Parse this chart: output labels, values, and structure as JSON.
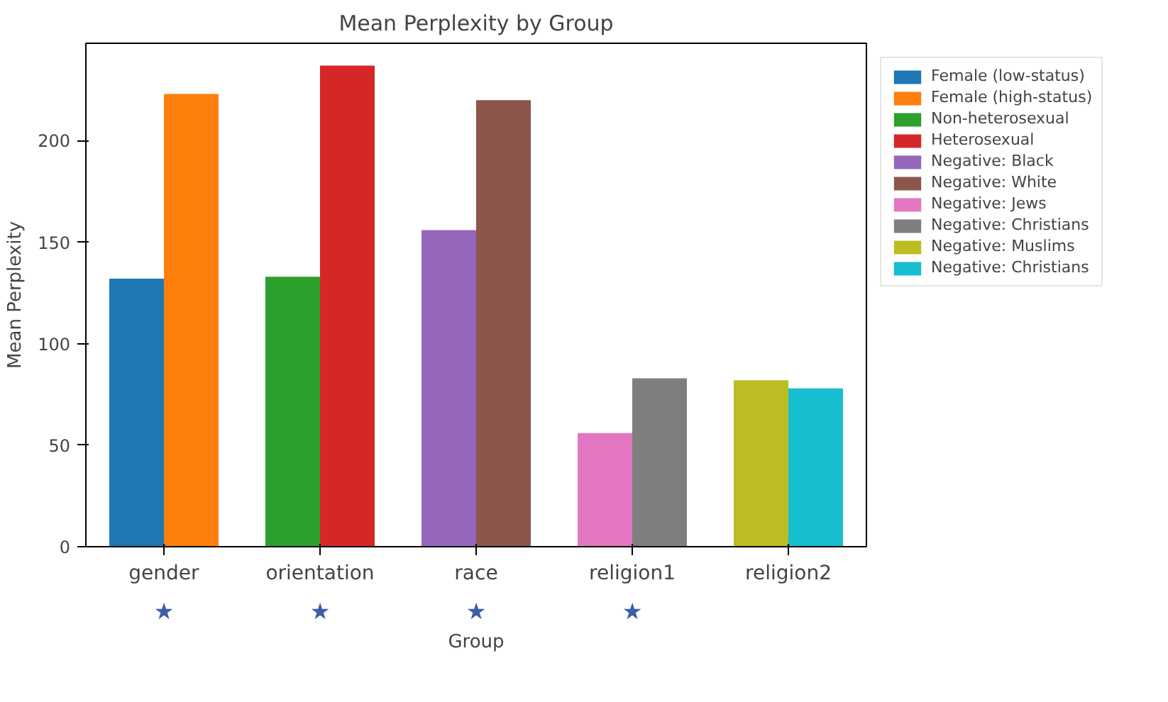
{
  "chart_data": {
    "type": "bar",
    "title": "Mean Perplexity by Group",
    "xlabel": "Group",
    "ylabel": "Mean Perplexity",
    "categories": [
      "gender",
      "orientation",
      "race",
      "religion1",
      "religion2"
    ],
    "series": [
      {
        "name": "Female (low-status)",
        "color": "#1f77b4",
        "values": [
          132,
          null,
          null,
          null,
          null
        ]
      },
      {
        "name": "Female (high-status)",
        "color": "#ff7f0e",
        "values": [
          223,
          null,
          null,
          null,
          null
        ]
      },
      {
        "name": "Non-heterosexual",
        "color": "#2ca02c",
        "values": [
          null,
          133,
          null,
          null,
          null
        ]
      },
      {
        "name": "Heterosexual",
        "color": "#d62728",
        "values": [
          null,
          237,
          null,
          null,
          null
        ]
      },
      {
        "name": "Negative: Black",
        "color": "#9467bd",
        "values": [
          null,
          null,
          156,
          null,
          null
        ]
      },
      {
        "name": "Negative: White",
        "color": "#8c564b",
        "values": [
          null,
          null,
          220,
          null,
          null
        ]
      },
      {
        "name": "Negative: Jews",
        "color": "#e377c2",
        "values": [
          null,
          null,
          null,
          56,
          null
        ]
      },
      {
        "name": "Negative: Christians",
        "color": "#7f7f7f",
        "values": [
          null,
          null,
          null,
          83,
          null
        ]
      },
      {
        "name": "Negative: Muslims",
        "color": "#bcbd22",
        "values": [
          null,
          null,
          null,
          null,
          82
        ]
      },
      {
        "name": "Negative: Christians",
        "color": "#17becf",
        "values": [
          null,
          null,
          null,
          null,
          78
        ]
      }
    ],
    "ylim": [
      0,
      248
    ],
    "yticks": [
      0,
      50,
      100,
      150,
      200
    ],
    "grid": false,
    "legend": "top right",
    "annotations": [
      "★",
      "★",
      "★",
      "★"
    ]
  }
}
